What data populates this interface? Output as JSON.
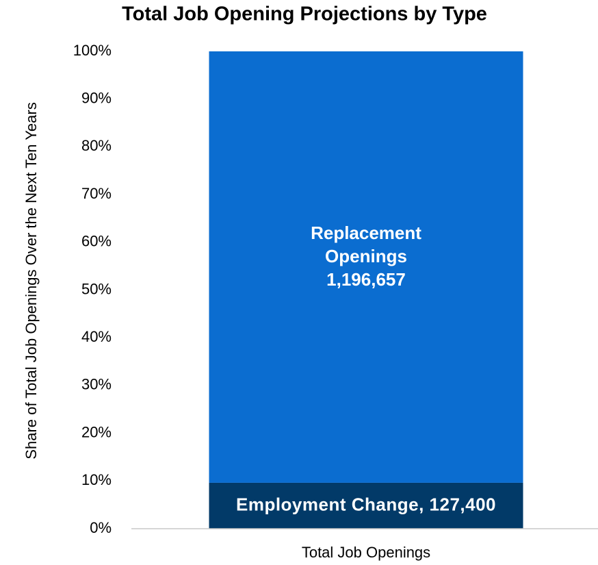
{
  "chart_data": {
    "type": "bar",
    "stack": "percent",
    "title": "Total Job Opening Projections by Type",
    "y_label": "Share of Total Job Openings Over the Next Ten Years",
    "categories": [
      "Total Job Openings"
    ],
    "series": [
      {
        "name": "Employment Change",
        "color": "#023a68",
        "values": [
          127400
        ],
        "value_labels": [
          "Employment Change, 127,400"
        ]
      },
      {
        "name": "Replacement Openings",
        "color": "#0b6dd0",
        "values": [
          1196657
        ],
        "value_labels": [
          "1,196,657"
        ]
      }
    ],
    "ylim": [
      0,
      100
    ],
    "yticks": [
      {
        "value": 0,
        "label": "0%"
      },
      {
        "value": 10,
        "label": "10%"
      },
      {
        "value": 20,
        "label": "20%"
      },
      {
        "value": 30,
        "label": "30%"
      },
      {
        "value": 40,
        "label": "40%"
      },
      {
        "value": 50,
        "label": "50%"
      },
      {
        "value": 60,
        "label": "60%"
      },
      {
        "value": 70,
        "label": "70%"
      },
      {
        "value": 80,
        "label": "80%"
      },
      {
        "value": 90,
        "label": "90%"
      },
      {
        "value": 100,
        "label": "100%"
      }
    ],
    "grid": false
  }
}
